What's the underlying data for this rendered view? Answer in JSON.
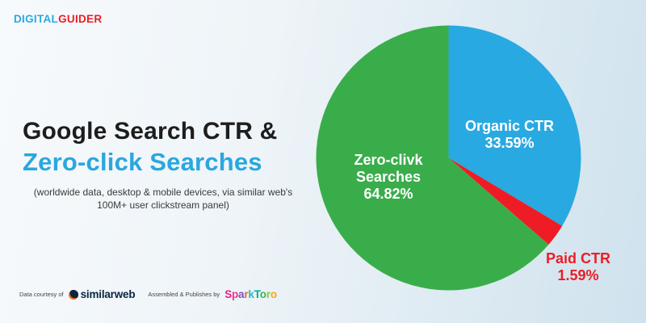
{
  "brand": {
    "logo_part1": "DIGITAL",
    "logo_part2": "GUIDER",
    "part1_color": "#29abe2",
    "part2_color": "#ed1c24"
  },
  "title": {
    "line1": "Google Search CTR &",
    "line2": "Zero-click Searches",
    "line2_color": "#2aa7de",
    "subtitle": "(worldwide data, desktop & mobile devices, via similar web's\n100M+ user clickstream panel)"
  },
  "chart_data": {
    "type": "pie",
    "title": "Google Search CTR & Zero-click Searches",
    "legend": "none",
    "start_angle_deg": 0,
    "direction": "clockwise",
    "slices": [
      {
        "name": "Organic CTR",
        "value": 33.59,
        "color": "#29a9e1",
        "label": "Organic CTR\n33.59%",
        "label_color": "#ffffff"
      },
      {
        "name": "Paid CTR",
        "value": 1.59,
        "color": "#ee1c25",
        "label": "Paid CTR\n1.59%",
        "label_color": "#ee1c25"
      },
      {
        "name": "Zero-click Searches",
        "value": 64.82,
        "color": "#3aad4b",
        "label": "Zero-clivk\nSearches\n64.82%",
        "label_color": "#ffffff"
      }
    ]
  },
  "footer": {
    "credit1_label": "Data courtesy of",
    "credit1_brand": "similarweb",
    "similarweb_navy": "#0a2540",
    "similarweb_orange": "#f26c25",
    "credit2_label": "Assembled & Publishes by",
    "credit2_brand": "SparkToro",
    "sparktoro_letters": [
      {
        "ch": "S",
        "color": "#ec1e8c"
      },
      {
        "ch": "p",
        "color": "#e8368f"
      },
      {
        "ch": "a",
        "color": "#7d4ccb"
      },
      {
        "ch": "r",
        "color": "#f26522"
      },
      {
        "ch": "k",
        "color": "#29b7c9"
      },
      {
        "ch": "T",
        "color": "#00a79d"
      },
      {
        "ch": "o",
        "color": "#39b54a"
      },
      {
        "ch": "r",
        "color": "#8dc63f"
      },
      {
        "ch": "o",
        "color": "#f9a61a"
      }
    ]
  },
  "background": {
    "gradient_left": "#f7fafc",
    "gradient_right": "#cfe2ed"
  }
}
